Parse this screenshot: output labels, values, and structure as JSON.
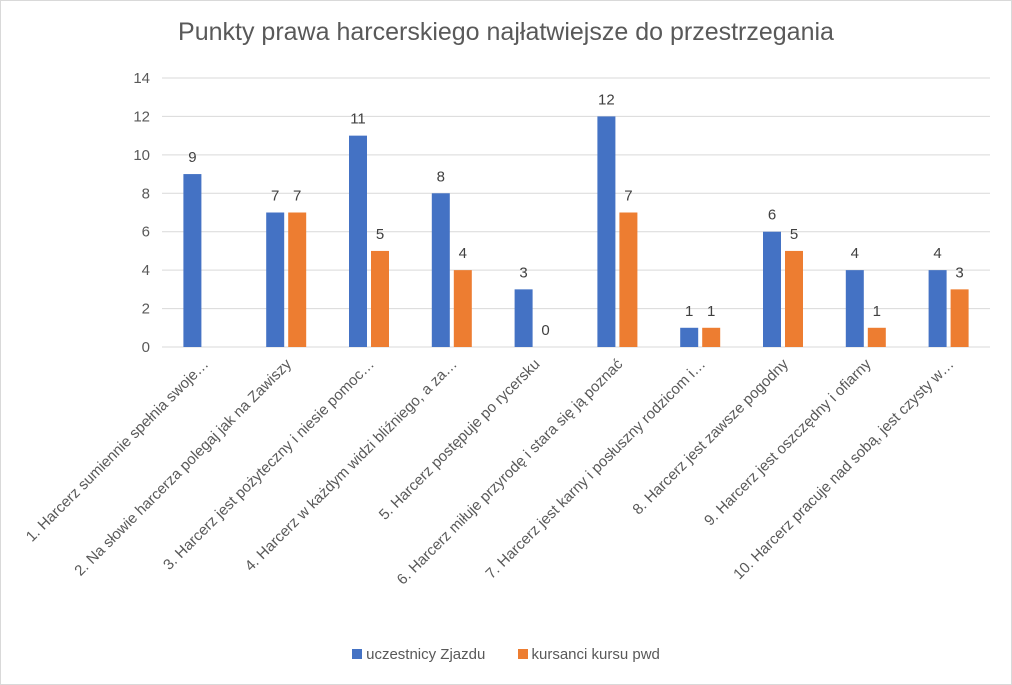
{
  "chart_data": {
    "type": "bar",
    "title": "Punkty prawa harcerskiego najłatwiejsze do przestrzegania",
    "xlabel": "",
    "ylabel": "",
    "ylim": [
      0,
      14
    ],
    "yticks": [
      0,
      2,
      4,
      6,
      8,
      10,
      12,
      14
    ],
    "grid": true,
    "legend_position": "bottom",
    "categories": [
      "1.  Harcerz sumiennie spełnia swoje…",
      "2. Na słowie harcerza polegaj jak na Zawiszy",
      "3. Harcerz jest pożyteczny i niesie pomoc…",
      "4. Harcerz w każdym widzi bliźniego, a za…",
      "5. Harcerz postępuje po rycersku",
      "6. Harcerz miłuje przyrodę i stara się ją poznać",
      "7. Harcerz jest karny i posłuszny rodzicom i…",
      "8. Harcerz jest zawsze pogodny",
      "9. Harcerz jest oszczędny i ofiarny",
      "10. Harcerz pracuje nad sobą, jest czysty w…"
    ],
    "series": [
      {
        "name": "uczestnicy Zjazdu",
        "color": "#4472c4",
        "values": [
          9,
          7,
          11,
          8,
          3,
          12,
          1,
          6,
          4,
          4
        ],
        "labels": [
          "9",
          "7",
          "11",
          "8",
          "3",
          "12",
          "1",
          "6",
          "4",
          "4"
        ]
      },
      {
        "name": "kursanci kursu pwd",
        "color": "#ed7d31",
        "values": [
          null,
          7,
          5,
          4,
          0,
          7,
          1,
          5,
          1,
          3
        ],
        "labels": [
          "",
          "7",
          "5",
          "4",
          "0",
          "7",
          "1",
          "5",
          "1",
          "3"
        ]
      }
    ]
  }
}
